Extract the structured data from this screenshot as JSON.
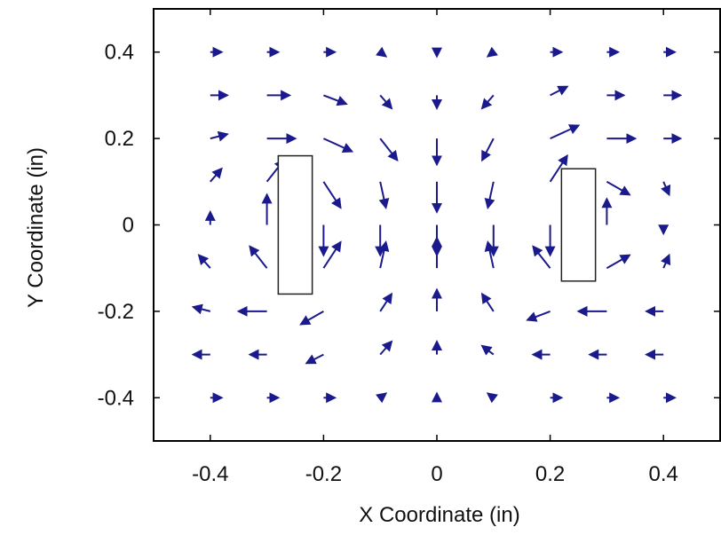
{
  "chart_data": {
    "type": "quiver",
    "xlabel": "X Coordinate (in)",
    "ylabel": "Y Coordinate (in)",
    "xlim": [
      -0.5,
      0.5
    ],
    "ylim": [
      -0.5,
      0.5
    ],
    "xticks": [
      {
        "value": -0.4,
        "label": "-0.4"
      },
      {
        "value": -0.2,
        "label": "-0.2"
      },
      {
        "value": 0,
        "label": "0"
      },
      {
        "value": 0.2,
        "label": "0.2"
      },
      {
        "value": 0.4,
        "label": "0.4"
      }
    ],
    "yticks": [
      {
        "value": 0.4,
        "label": "0.4"
      },
      {
        "value": 0.2,
        "label": "0.2"
      },
      {
        "value": 0,
        "label": "0"
      },
      {
        "value": -0.2,
        "label": "-0.2"
      },
      {
        "value": -0.4,
        "label": "-0.4"
      }
    ],
    "grid": false,
    "arrow_color": "#1a1a8c",
    "grid_x": [
      -0.4,
      -0.3,
      -0.2,
      -0.1,
      0,
      0.1,
      0.2,
      0.3,
      0.4
    ],
    "grid_y": [
      0.4,
      0.3,
      0.2,
      0.1,
      0,
      -0.1,
      -0.2,
      -0.3,
      -0.4
    ],
    "vectors_uv_rows_top_to_bottom": [
      [
        [
          0.02,
          0.0
        ],
        [
          0.02,
          0.0
        ],
        [
          0.02,
          0.0
        ],
        [
          0.01,
          -0.01
        ],
        [
          0.0,
          -0.01
        ],
        [
          -0.01,
          -0.01
        ],
        [
          0.02,
          0.0
        ],
        [
          0.02,
          0.0
        ],
        [
          0.02,
          0.0
        ]
      ],
      [
        [
          0.03,
          0.0
        ],
        [
          0.04,
          0.0
        ],
        [
          0.04,
          -0.02
        ],
        [
          0.02,
          -0.03
        ],
        [
          0.0,
          -0.03
        ],
        [
          -0.02,
          -0.03
        ],
        [
          0.03,
          0.02
        ],
        [
          0.03,
          0.0
        ],
        [
          0.03,
          0.0
        ]
      ],
      [
        [
          0.03,
          0.01
        ],
        [
          0.05,
          0.0
        ],
        [
          0.05,
          -0.03
        ],
        [
          0.03,
          -0.05
        ],
        [
          0.0,
          -0.06
        ],
        [
          -0.02,
          -0.05
        ],
        [
          0.05,
          0.03
        ],
        [
          0.05,
          0.0
        ],
        [
          0.03,
          0.0
        ]
      ],
      [
        [
          0.02,
          0.03
        ],
        [
          0.03,
          0.05
        ],
        [
          0.03,
          -0.06
        ],
        [
          0.01,
          -0.06
        ],
        [
          0.0,
          -0.07
        ],
        [
          -0.01,
          -0.06
        ],
        [
          0.03,
          0.06
        ],
        [
          0.04,
          -0.03
        ],
        [
          0.01,
          -0.03
        ]
      ],
      [
        [
          0.0,
          0.03
        ],
        [
          0.0,
          0.07
        ],
        [
          0.0,
          -0.07
        ],
        [
          0.0,
          -0.07
        ],
        [
          0.0,
          -0.07
        ],
        [
          0.0,
          -0.07
        ],
        [
          0.0,
          -0.07
        ],
        [
          0.0,
          0.06
        ],
        [
          0.0,
          -0.02
        ]
      ],
      [
        [
          -0.02,
          0.03
        ],
        [
          -0.03,
          0.05
        ],
        [
          0.03,
          0.06
        ],
        [
          0.01,
          0.06
        ],
        [
          0.0,
          0.07
        ],
        [
          -0.01,
          0.06
        ],
        [
          -0.03,
          0.05
        ],
        [
          0.04,
          0.03
        ],
        [
          0.01,
          0.03
        ]
      ],
      [
        [
          -0.03,
          0.01
        ],
        [
          -0.05,
          0.0
        ],
        [
          -0.04,
          -0.03
        ],
        [
          0.02,
          0.04
        ],
        [
          0.0,
          0.05
        ],
        [
          -0.02,
          0.04
        ],
        [
          -0.04,
          -0.02
        ],
        [
          -0.05,
          0.0
        ],
        [
          -0.03,
          0.0
        ]
      ],
      [
        [
          -0.03,
          0.0
        ],
        [
          -0.03,
          0.0
        ],
        [
          -0.03,
          -0.02
        ],
        [
          0.02,
          0.03
        ],
        [
          0.0,
          0.03
        ],
        [
          -0.02,
          0.02
        ],
        [
          -0.03,
          0.0
        ],
        [
          -0.03,
          0.0
        ],
        [
          -0.03,
          0.0
        ]
      ],
      [
        [
          0.02,
          0.0
        ],
        [
          0.02,
          0.0
        ],
        [
          0.02,
          0.0
        ],
        [
          0.01,
          0.01
        ],
        [
          0.0,
          0.01
        ],
        [
          -0.01,
          0.01
        ],
        [
          0.02,
          0.0
        ],
        [
          0.02,
          0.0
        ],
        [
          0.02,
          0.0
        ]
      ]
    ],
    "rectangles": [
      {
        "x0": -0.28,
        "x1": -0.22,
        "y0": -0.16,
        "y1": 0.16
      },
      {
        "x0": 0.22,
        "x1": 0.28,
        "y0": -0.13,
        "y1": 0.13
      }
    ]
  }
}
